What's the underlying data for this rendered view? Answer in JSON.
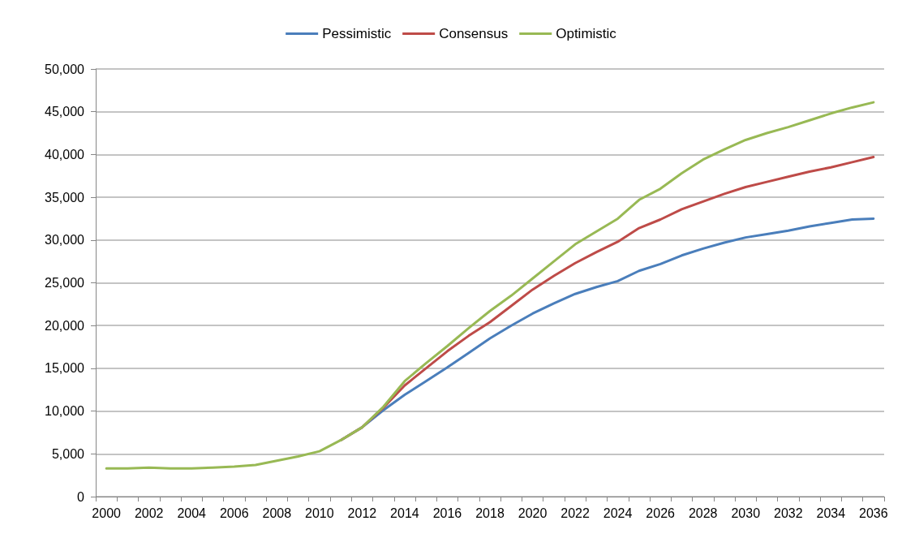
{
  "chart_data": {
    "type": "line",
    "categories": [
      "2000",
      null,
      "2002",
      null,
      "2004",
      null,
      "2006",
      null,
      "2008",
      null,
      "2010",
      null,
      "2012",
      null,
      "2014",
      null,
      "2016",
      null,
      "2018",
      null,
      "2020",
      null,
      "2022",
      null,
      "2024",
      null,
      "2026",
      null,
      "2028",
      null,
      "2030",
      null,
      "2032",
      null,
      "2034",
      null,
      "2036"
    ],
    "series": [
      {
        "name": "Pessimistic",
        "color": "#4a7ebb",
        "values": [
          null,
          null,
          null,
          null,
          null,
          null,
          null,
          null,
          null,
          null,
          null,
          6600,
          8100,
          10100,
          11900,
          13500,
          15100,
          16800,
          18500,
          20000,
          21400,
          22600,
          23700,
          24500,
          25200,
          26400,
          27200,
          28200,
          29000,
          29700,
          30300,
          30700,
          31100,
          31600,
          32000,
          32400,
          32500
        ]
      },
      {
        "name": "Consensus",
        "color": "#be4b48",
        "values": [
          null,
          null,
          null,
          null,
          null,
          null,
          null,
          null,
          null,
          null,
          null,
          6600,
          8100,
          10400,
          13000,
          15000,
          17000,
          18800,
          20400,
          22300,
          24200,
          25800,
          27300,
          28600,
          29800,
          31400,
          32400,
          33600,
          34500,
          35400,
          36200,
          36800,
          37400,
          38000,
          38500,
          39100,
          39700
        ]
      },
      {
        "name": "Optimistic",
        "color": "#98b954",
        "values": [
          3300,
          3300,
          3400,
          3300,
          3300,
          3400,
          3500,
          3700,
          4200,
          4700,
          5300,
          6600,
          8100,
          10500,
          13500,
          15600,
          17600,
          19700,
          21700,
          23500,
          25500,
          27500,
          29500,
          31000,
          32500,
          34700,
          36000,
          37800,
          39400,
          40600,
          41700,
          42500,
          43200,
          44000,
          44800,
          45500,
          46100
        ]
      }
    ],
    "ylim": [
      0,
      50000
    ],
    "yticks": [
      0,
      {
        "value": 5000,
        "label": "5,000"
      },
      {
        "value": 10000,
        "label": "10,000"
      },
      {
        "value": 15000,
        "label": "15,000"
      },
      {
        "value": 20000,
        "label": "20,000"
      },
      {
        "value": 25000,
        "label": "25,000"
      },
      {
        "value": 30000,
        "label": "30,000"
      },
      {
        "value": 35000,
        "label": "35,000"
      },
      {
        "value": 40000,
        "label": "40,000"
      },
      {
        "value": 45000,
        "label": "45,000"
      },
      {
        "value": 50000,
        "label": "50,000"
      }
    ],
    "grid": "y",
    "legend": "top",
    "marker": "none",
    "line_style": "solid"
  }
}
